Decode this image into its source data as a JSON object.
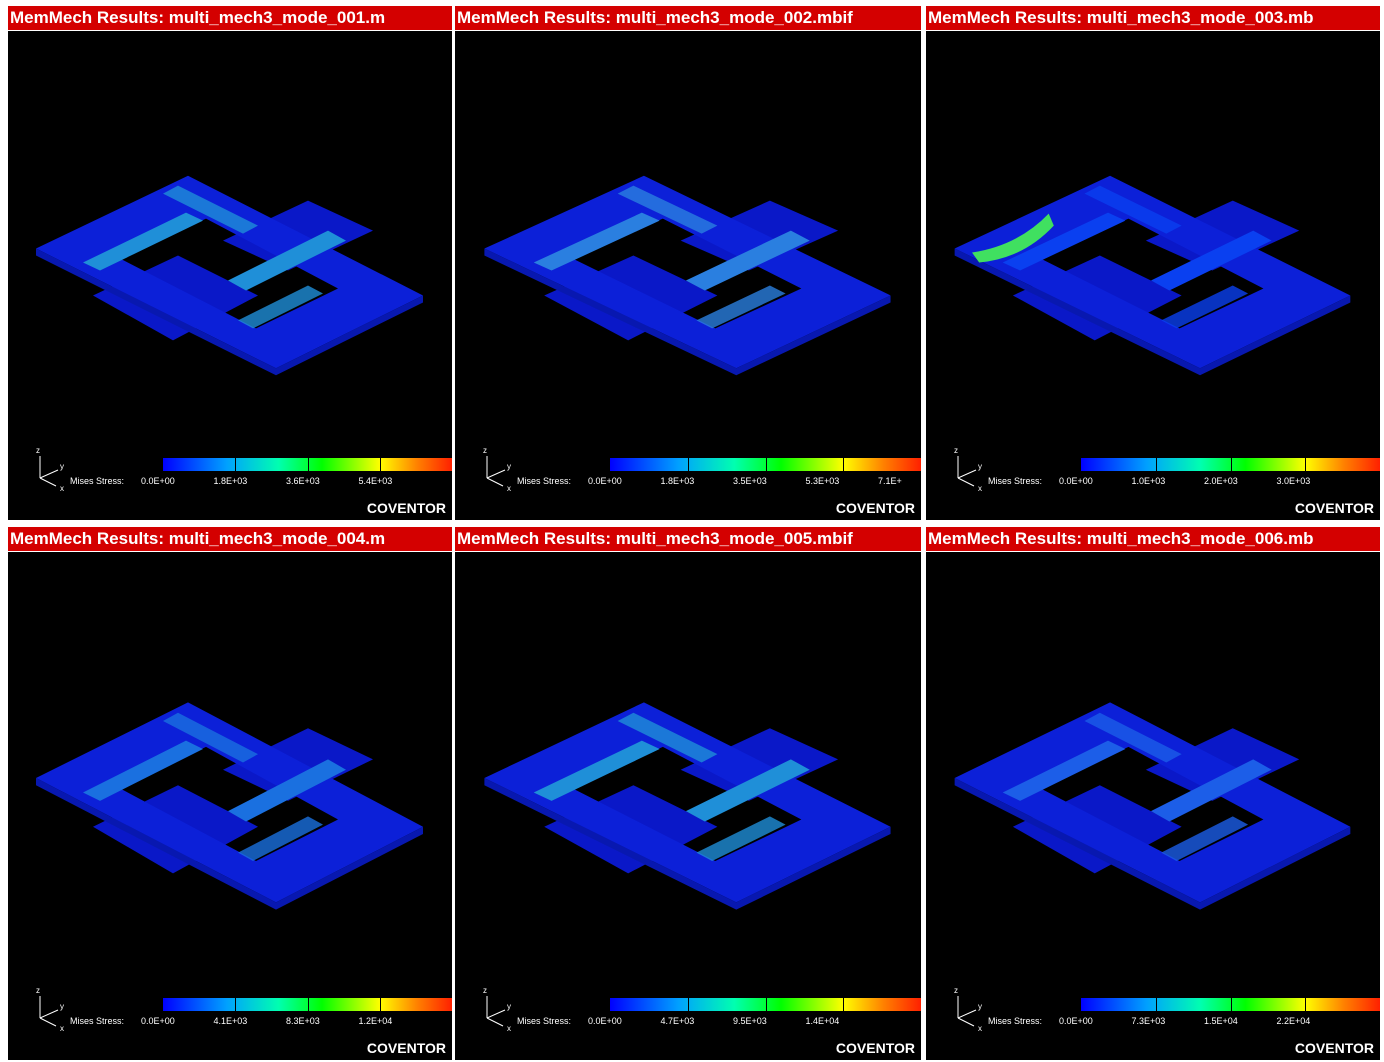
{
  "panels": [
    {
      "title": "MemMech Results: multi_mech3_mode_001.m",
      "legend_label": "Mises Stress:",
      "ticks": [
        "0.0E+00",
        "1.8E+03",
        "3.6E+03",
        "5.4E+03"
      ],
      "brand": "COVENTOR",
      "axis_labels": [
        "z",
        "y",
        "x"
      ]
    },
    {
      "title": "MemMech Results: multi_mech3_mode_002.mbif",
      "legend_label": "Mises Stress:",
      "ticks": [
        "0.0E+00",
        "1.8E+03",
        "3.5E+03",
        "5.3E+03",
        "7.1E+"
      ],
      "brand": "COVENTOR",
      "axis_labels": [
        "z",
        "y",
        "x"
      ]
    },
    {
      "title": "MemMech Results: multi_mech3_mode_003.mb",
      "legend_label": "Mises Stress:",
      "ticks": [
        "0.0E+00",
        "1.0E+03",
        "2.0E+03",
        "3.0E+03"
      ],
      "brand": "COVENTOR",
      "axis_labels": [
        "z",
        "y",
        "x"
      ]
    },
    {
      "title": "MemMech Results: multi_mech3_mode_004.m",
      "legend_label": "Mises Stress:",
      "ticks": [
        "0.0E+00",
        "4.1E+03",
        "8.3E+03",
        "1.2E+04"
      ],
      "brand": "COVENTOR",
      "axis_labels": [
        "z",
        "y",
        "x"
      ]
    },
    {
      "title": "MemMech Results: multi_mech3_mode_005.mbif",
      "legend_label": "Mises Stress:",
      "ticks": [
        "0.0E+00",
        "4.7E+03",
        "9.5E+03",
        "1.4E+04"
      ],
      "brand": "COVENTOR",
      "axis_labels": [
        "z",
        "y",
        "x"
      ]
    },
    {
      "title": "MemMech Results: multi_mech3_mode_006.mb",
      "legend_label": "Mises Stress:",
      "ticks": [
        "0.0E+00",
        "7.3E+03",
        "1.5E+04",
        "2.2E+04"
      ],
      "brand": "COVENTOR",
      "axis_labels": [
        "z",
        "y",
        "x"
      ]
    }
  ]
}
